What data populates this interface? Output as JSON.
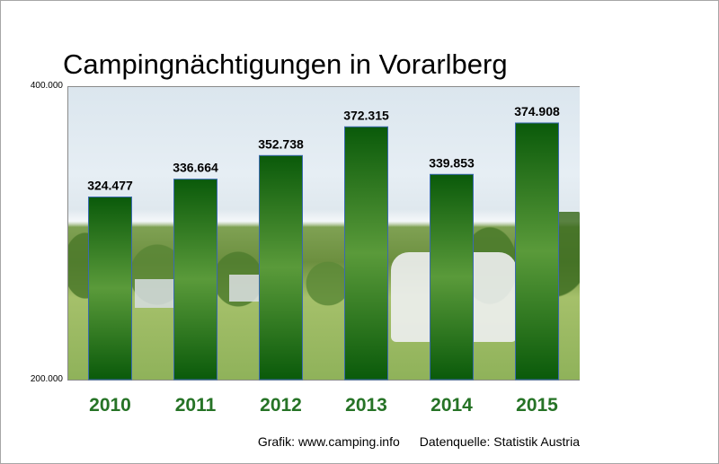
{
  "chart_data": {
    "type": "bar",
    "title": "Campingnächtigungen in Vorarlberg",
    "categories": [
      "2010",
      "2011",
      "2012",
      "2013",
      "2014",
      "2015"
    ],
    "values": [
      324477,
      336664,
      352738,
      372315,
      339853,
      374908
    ],
    "value_labels": [
      "324.477",
      "336.664",
      "352.738",
      "372.315",
      "339.853",
      "374.908"
    ],
    "ylim": [
      200000,
      400000
    ],
    "yticks": [
      "200.000",
      "400.000"
    ],
    "xlabel": "",
    "ylabel": "",
    "grid": false,
    "colors": {
      "bar_top": "#0a5a0a",
      "bar_mid": "#5a9a3a",
      "bar_bottom": "#0a5a0a",
      "bar_border": "#3a6ab0",
      "category_text": "#267326"
    }
  },
  "footer": {
    "credit": "Grafik: www.camping.info",
    "source": "Datenquelle: Statistik Austria"
  }
}
